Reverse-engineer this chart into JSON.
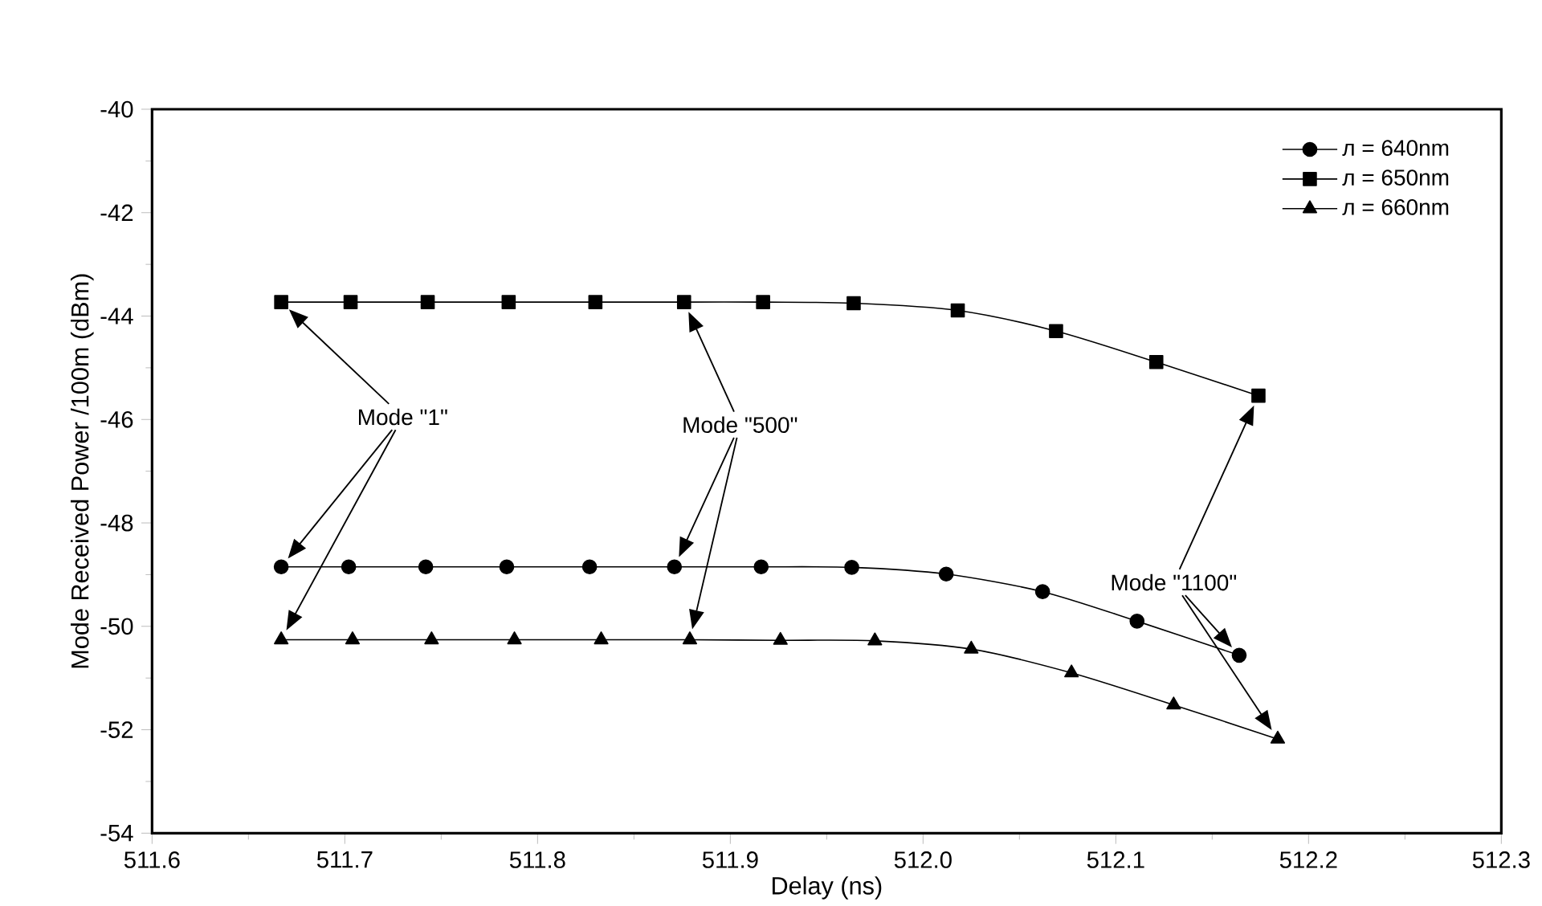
{
  "chart_data": {
    "type": "line",
    "xlabel": "Delay (ns)",
    "ylabel": "Mode Received Power /100m (dBm)",
    "xlim": [
      511.6,
      512.3
    ],
    "xticks": [
      511.6,
      511.7,
      511.8,
      511.9,
      {
        "value": 512.0,
        "label": "512.0"
      },
      512.1,
      512.2,
      512.3
    ],
    "ylim": [
      -54,
      -40
    ],
    "yticks": [
      -54,
      -52,
      -50,
      -48,
      -46,
      -44,
      -42,
      -40
    ],
    "legend": "top right",
    "grid": false,
    "series": [
      {
        "name": "л = 640nm",
        "color": "#000000",
        "marker": "circle",
        "x": [
          511.667,
          511.702,
          511.742,
          511.784,
          511.827,
          511.871,
          511.916,
          511.963,
          512.012,
          512.062,
          512.111,
          512.164
        ],
        "values": [
          -48.85,
          -48.85,
          -48.85,
          -48.85,
          -48.85,
          -48.85,
          -48.85,
          -48.86,
          -48.99,
          -49.33,
          -49.9,
          -50.56
        ]
      },
      {
        "name": "л = 650nm",
        "color": "#000000",
        "marker": "square",
        "x": [
          511.667,
          511.703,
          511.743,
          511.785,
          511.83,
          511.876,
          511.917,
          511.964,
          512.018,
          512.069,
          512.121,
          512.174
        ],
        "values": [
          -43.73,
          -43.73,
          -43.73,
          -43.73,
          -43.73,
          -43.73,
          -43.73,
          -43.75,
          -43.89,
          -44.29,
          -44.89,
          -45.54
        ]
      },
      {
        "name": "л = 660nm",
        "color": "#000000",
        "marker": "triangle",
        "x": [
          511.667,
          511.704,
          511.745,
          511.788,
          511.833,
          511.879,
          511.926,
          511.975,
          512.025,
          512.077,
          512.13,
          512.184
        ],
        "values": [
          -50.26,
          -50.26,
          -50.26,
          -50.26,
          -50.26,
          -50.26,
          -50.27,
          -50.28,
          -50.44,
          -50.9,
          -51.52,
          -52.18
        ]
      }
    ],
    "annotations": [
      "Mode \"1\"",
      "Mode \"500\"",
      "Mode \"1100\""
    ]
  }
}
